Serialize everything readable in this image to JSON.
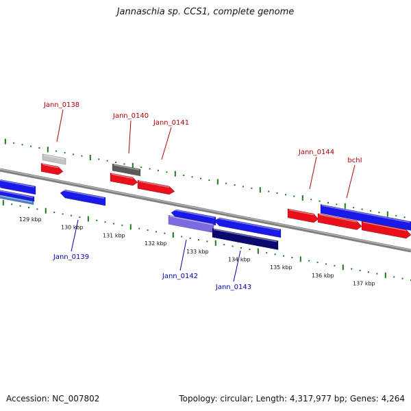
{
  "title": "Jannaschia sp. CCS1, complete genome",
  "footer": {
    "accession": "Accession: NC_007802",
    "stats": "Topology: circular; Length: 4,317,977 bp; Genes: 4,264"
  },
  "colors": {
    "forward_gene": "#e8101a",
    "reverse_gene": "#1a1ae8",
    "forward_label": "#b00000",
    "reverse_label": "#0000b0",
    "backbone": "#808080",
    "tick": "#1a7a1a"
  },
  "kbp_labels": [
    "129 kbp",
    "130 kbp",
    "131 kbp",
    "132 kbp",
    "133 kbp",
    "134 kbp",
    "135 kbp",
    "136 kbp",
    "137 kbp"
  ],
  "forward_gene_labels": [
    "Jann_0138",
    "Jann_0140",
    "Jann_0141",
    "Jann_0144",
    "bchI"
  ],
  "reverse_gene_labels": [
    "Jann_0139",
    "Jann_0142",
    "Jann_0143"
  ]
}
